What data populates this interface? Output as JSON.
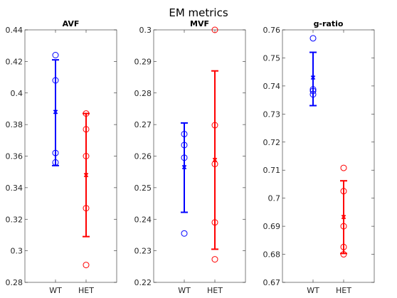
{
  "figure": {
    "title": "EM metrics"
  },
  "colors": {
    "WT": "#0000ff",
    "HET": "#ff0000",
    "axis": "#262626"
  },
  "chart_data": [
    {
      "type": "scatter",
      "title": "AVF",
      "categories": [
        "WT",
        "HET"
      ],
      "ylim": [
        0.28,
        0.44
      ],
      "yticks": [
        0.28,
        0.3,
        0.32,
        0.34,
        0.36,
        0.38,
        0.4,
        0.42,
        0.44
      ],
      "ytick_labels": [
        "0.28",
        "0.3",
        "0.32",
        "0.34",
        "0.36",
        "0.38",
        "0.4",
        "0.42",
        "0.44"
      ],
      "series": [
        {
          "category": "WT",
          "points": [
            0.424,
            0.408,
            0.362,
            0.356
          ],
          "mean": 0.388,
          "err_low": 0.354,
          "err_high": 0.421
        },
        {
          "category": "HET",
          "points": [
            0.387,
            0.377,
            0.36,
            0.327,
            0.291
          ],
          "mean": 0.348,
          "err_low": 0.309,
          "err_high": 0.387
        }
      ]
    },
    {
      "type": "scatter",
      "title": "MVF",
      "categories": [
        "WT",
        "HET"
      ],
      "ylim": [
        0.22,
        0.3
      ],
      "yticks": [
        0.22,
        0.23,
        0.24,
        0.25,
        0.26,
        0.27,
        0.28,
        0.29,
        0.3
      ],
      "ytick_labels": [
        "0.22",
        "0.23",
        "0.24",
        "0.25",
        "0.26",
        "0.27",
        "0.28",
        "0.29",
        "0.3"
      ],
      "series": [
        {
          "category": "WT",
          "points": [
            0.267,
            0.2635,
            0.2595,
            0.2355
          ],
          "mean": 0.2565,
          "err_low": 0.2422,
          "err_high": 0.2705
        },
        {
          "category": "HET",
          "points": [
            0.3,
            0.2698,
            0.2575,
            0.239,
            0.2273
          ],
          "mean": 0.2588,
          "err_low": 0.2305,
          "err_high": 0.287
        }
      ]
    },
    {
      "type": "scatter",
      "title": "g-ratio",
      "categories": [
        "WT",
        "HET"
      ],
      "ylim": [
        0.67,
        0.76
      ],
      "yticks": [
        0.67,
        0.68,
        0.69,
        0.7,
        0.71,
        0.72,
        0.73,
        0.74,
        0.75,
        0.76
      ],
      "ytick_labels": [
        "0.67",
        "0.68",
        "0.69",
        "0.7",
        "0.71",
        "0.72",
        "0.73",
        "0.74",
        "0.75",
        "0.76"
      ],
      "series": [
        {
          "category": "WT",
          "points": [
            0.757,
            0.7388,
            0.7382,
            0.737
          ],
          "mean": 0.743,
          "err_low": 0.733,
          "err_high": 0.752
        },
        {
          "category": "HET",
          "points": [
            0.7108,
            0.7025,
            0.69,
            0.6826,
            0.68
          ],
          "mean": 0.6933,
          "err_low": 0.6803,
          "err_high": 0.7062
        }
      ]
    }
  ]
}
